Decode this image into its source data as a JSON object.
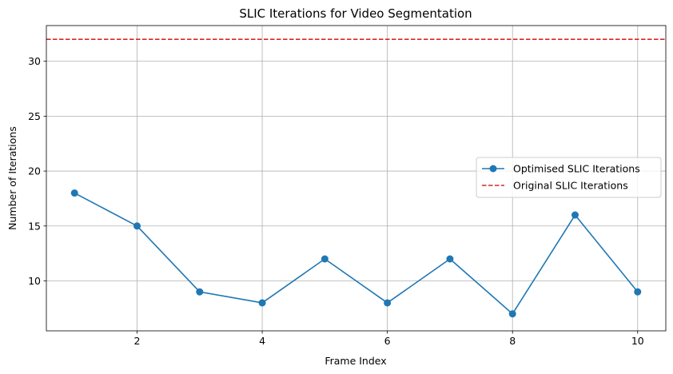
{
  "chart_data": {
    "type": "line",
    "title": "SLIC Iterations for Video Segmentation",
    "xlabel": "Frame Index",
    "ylabel": "Number of Iterations",
    "x": [
      1,
      2,
      3,
      4,
      5,
      6,
      7,
      8,
      9,
      10
    ],
    "xlim": [
      0.55,
      10.45
    ],
    "ylim": [
      5.45,
      33.25
    ],
    "xticks": [
      2,
      4,
      6,
      8,
      10
    ],
    "yticks": [
      10,
      15,
      20,
      25,
      30
    ],
    "grid": true,
    "legend_position": "center-right",
    "series": [
      {
        "name": "Optimised SLIC Iterations",
        "values": [
          18,
          15,
          9,
          8,
          12,
          8,
          12,
          7,
          16,
          9
        ],
        "color": "#1f77b4",
        "style": "solid",
        "marker": "circle"
      }
    ],
    "reference_lines": [
      {
        "name": "Original SLIC Iterations",
        "y": 32,
        "color": "#d62728",
        "style": "dashed"
      }
    ]
  }
}
